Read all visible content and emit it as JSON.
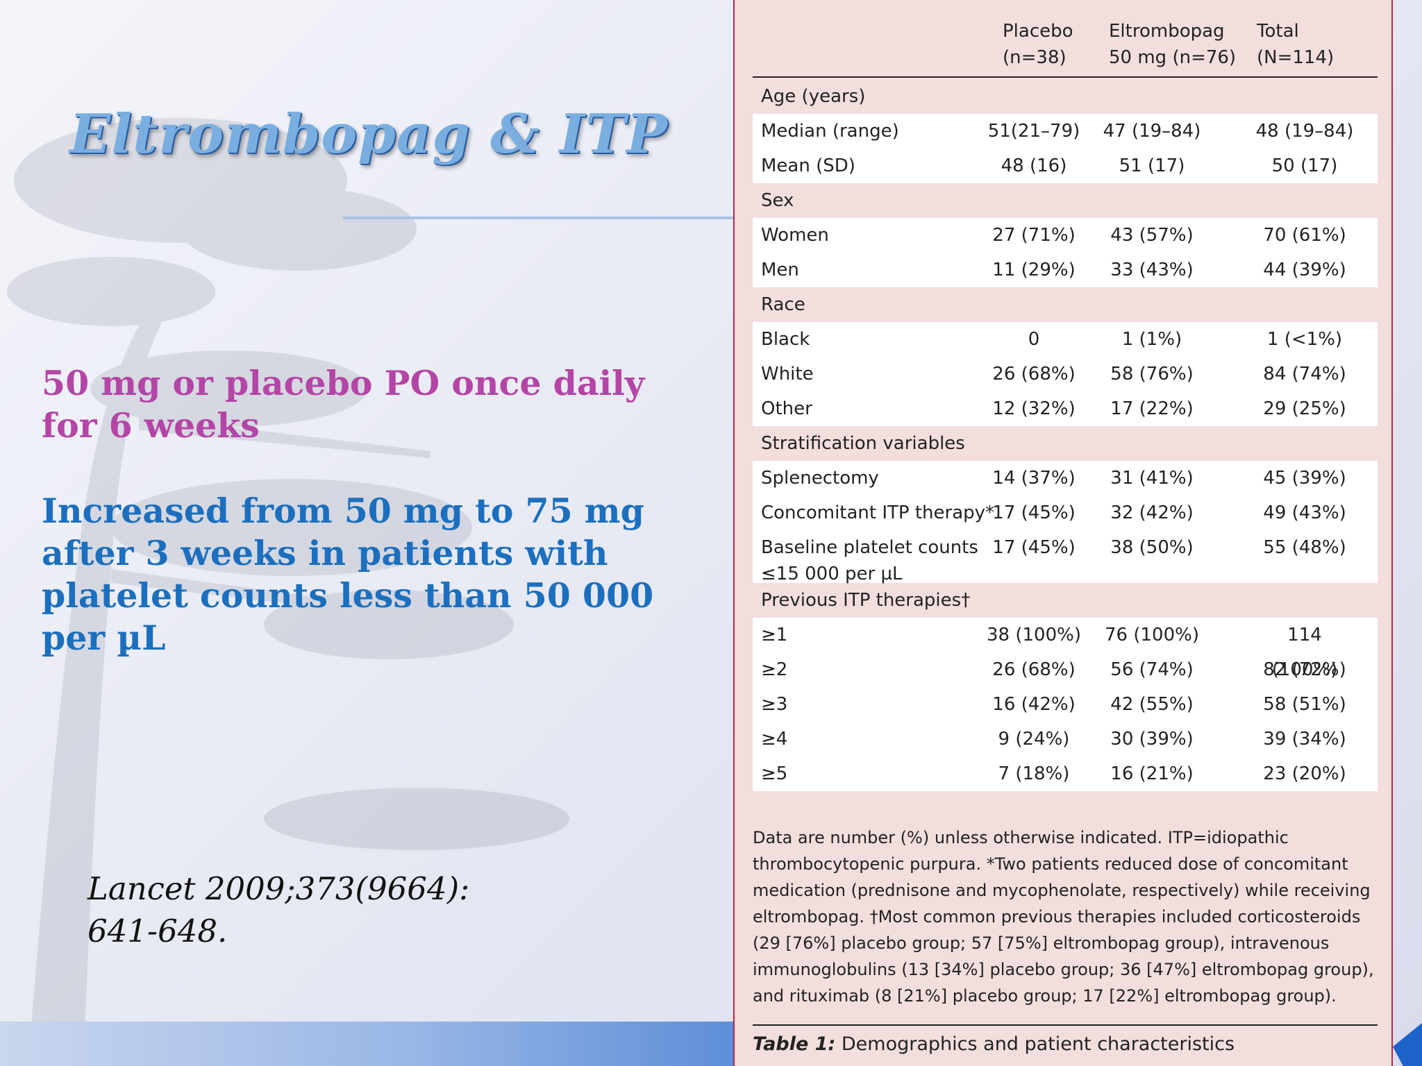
{
  "slide": {
    "title": "Eltrombopag & ITP",
    "point1": "50 mg or placebo  PO once daily for 6 weeks",
    "point2": "Increased from 50 mg to 75 mg after 3 weeks in patients with platelet counts less than 50 000 per µL",
    "citation_line1": "Lancet 2009;373(9664):",
    "citation_line2": "641-648."
  },
  "table": {
    "headers": [
      {
        "line1": "Placebo",
        "line2": "(n=38)"
      },
      {
        "line1": "Eltrombopag",
        "line2": "50 mg (n=76)"
      },
      {
        "line1": "Total",
        "line2": "(N=114)"
      }
    ],
    "sections": [
      {
        "title": "Age (years)",
        "rows": [
          {
            "label": "Median (range)",
            "values": [
              "51(21–79)",
              "47 (19–84)",
              "48 (19–84)"
            ]
          },
          {
            "label": "Mean (SD)",
            "values": [
              "48 (16)",
              "51 (17)",
              "50 (17)"
            ]
          }
        ]
      },
      {
        "title": "Sex",
        "rows": [
          {
            "label": "Women",
            "values": [
              "27 (71%)",
              "43 (57%)",
              "70 (61%)"
            ]
          },
          {
            "label": "Men",
            "values": [
              "11 (29%)",
              "33 (43%)",
              "44 (39%)"
            ]
          }
        ]
      },
      {
        "title": "Race",
        "rows": [
          {
            "label": "Black",
            "values": [
              "0",
              "1 (1%)",
              "1 (<1%)"
            ]
          },
          {
            "label": "White",
            "values": [
              "26 (68%)",
              "58 (76%)",
              "84 (74%)"
            ]
          },
          {
            "label": "Other",
            "values": [
              "12 (32%)",
              "17 (22%)",
              "29 (25%)"
            ]
          }
        ]
      },
      {
        "title": "Stratification variables",
        "rows": [
          {
            "label": "Splenectomy",
            "values": [
              "14 (37%)",
              "31 (41%)",
              "45 (39%)"
            ]
          },
          {
            "label": "Concomitant ITP therapy*",
            "values": [
              "17 (45%)",
              "32 (42%)",
              "49 (43%)"
            ]
          },
          {
            "label": "Baseline platelet counts",
            "label2": "≤15 000 per µL",
            "values": [
              "17 (45%)",
              "38 (50%)",
              "55 (48%)"
            ]
          }
        ]
      },
      {
        "title": "Previous ITP therapies†",
        "rows": [
          {
            "label": "≥1",
            "values": [
              "38 (100%)",
              "76 (100%)",
              "114 (100%)"
            ]
          },
          {
            "label": "≥2",
            "values": [
              "26 (68%)",
              "56 (74%)",
              "82 (72%)"
            ]
          },
          {
            "label": "≥3",
            "values": [
              "16 (42%)",
              "42 (55%)",
              "58 (51%)"
            ]
          },
          {
            "label": "≥4",
            "values": [
              "9 (24%)",
              "30 (39%)",
              "39 (34%)"
            ]
          },
          {
            "label": "≥5",
            "values": [
              "7 (18%)",
              "16 (21%)",
              "23 (20%)"
            ]
          }
        ]
      }
    ],
    "footnote": "Data are number (%) unless otherwise indicated. ITP=idiopathic thrombocytopenic purpura. *Two patients reduced dose of concomitant medication (prednisone and mycophenolate, respectively) while receiving eltrombopag. †Most common previous therapies included corticosteroids (29 [76%] placebo group; 57 [75%] eltrombopag group), intravenous immunoglobulins (13 [34%] placebo group; 36 [47%] eltrombopag group), and rituximab (8 [21%] placebo group; 17 [22%] eltrombopag group).",
    "caption_label": "Table 1:",
    "caption_text": " Demographics and patient characteristics"
  }
}
